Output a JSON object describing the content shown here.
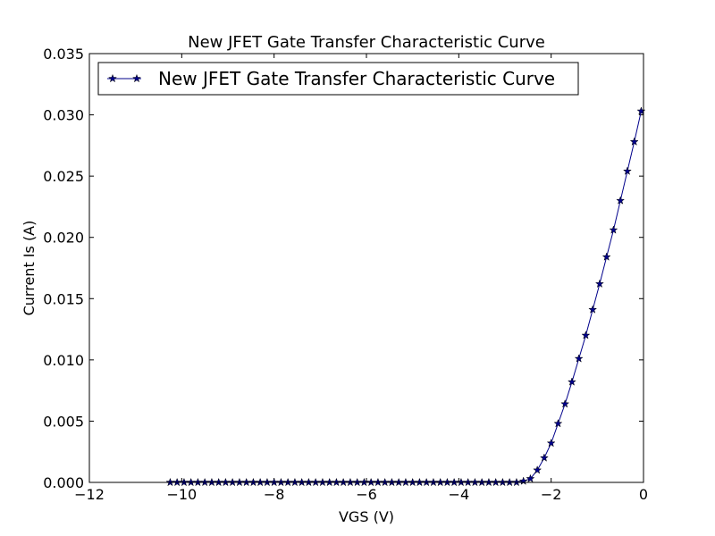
{
  "chart_data": {
    "type": "line",
    "title": "New JFET Gate Transfer Characteristic Curve",
    "xlabel": "VGS (V)",
    "ylabel": "Current Is (A)",
    "xlim": [
      -12,
      0
    ],
    "ylim": [
      0,
      0.035
    ],
    "x_ticks": [
      -12,
      -10,
      -8,
      -6,
      -4,
      -2,
      0
    ],
    "x_tick_labels": [
      "−12",
      "−10",
      "−8",
      "−6",
      "−4",
      "−2",
      "0"
    ],
    "y_ticks": [
      0,
      0.005,
      0.01,
      0.015,
      0.02,
      0.025,
      0.03,
      0.035
    ],
    "y_tick_labels": [
      "0.000",
      "0.005",
      "0.010",
      "0.015",
      "0.020",
      "0.025",
      "0.030",
      "0.035"
    ],
    "grid": false,
    "legend_position": "top-left",
    "series": [
      {
        "name": "New JFET Gate Transfer Characteristic Curve",
        "color": "#00008b",
        "marker": "star",
        "x": [
          -10.25,
          -10.1,
          -9.95,
          -9.8,
          -9.65,
          -9.5,
          -9.35,
          -9.2,
          -9.05,
          -8.9,
          -8.75,
          -8.6,
          -8.45,
          -8.3,
          -8.15,
          -8.0,
          -7.85,
          -7.7,
          -7.55,
          -7.4,
          -7.25,
          -7.1,
          -6.95,
          -6.8,
          -6.65,
          -6.5,
          -6.35,
          -6.2,
          -6.05,
          -5.9,
          -5.75,
          -5.6,
          -5.45,
          -5.3,
          -5.15,
          -5.0,
          -4.85,
          -4.7,
          -4.55,
          -4.4,
          -4.25,
          -4.1,
          -3.95,
          -3.8,
          -3.65,
          -3.5,
          -3.35,
          -3.2,
          -3.05,
          -2.9,
          -2.75,
          -2.6,
          -2.45,
          -2.3,
          -2.15,
          -2.0,
          -1.85,
          -1.7,
          -1.55,
          -1.4,
          -1.25,
          -1.1,
          -0.95,
          -0.8,
          -0.65,
          -0.5,
          -0.35,
          -0.2,
          -0.05
        ],
        "y": [
          0,
          0,
          0,
          0,
          0,
          0,
          0,
          0,
          0,
          0,
          0,
          0,
          0,
          0,
          0,
          0,
          0,
          0,
          0,
          0,
          0,
          0,
          0,
          0,
          0,
          0,
          0,
          0,
          0,
          0,
          0,
          0,
          0,
          0,
          0,
          0,
          0,
          0,
          0,
          0,
          0,
          0,
          0,
          0,
          0,
          0,
          0,
          0,
          0,
          0,
          0,
          0.0001,
          0.0003,
          0.001,
          0.002,
          0.0032,
          0.0048,
          0.0064,
          0.0082,
          0.0101,
          0.012,
          0.0141,
          0.0162,
          0.0184,
          0.0206,
          0.023,
          0.0254,
          0.0278,
          0.0303
        ]
      }
    ]
  }
}
